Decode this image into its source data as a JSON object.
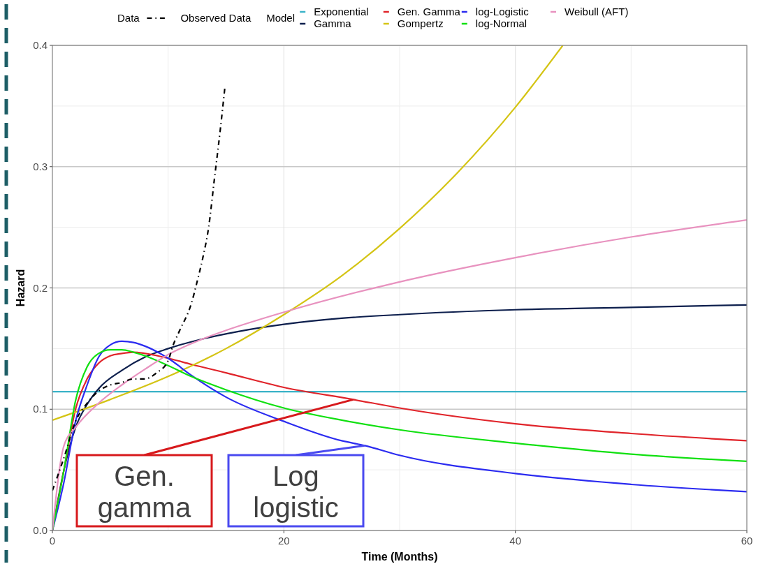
{
  "chart_data": {
    "type": "line",
    "xlabel": "Time (Months)",
    "ylabel": "Hazard",
    "legend": "top",
    "legend_title": "Model",
    "grid": true,
    "xlim": [
      0,
      60
    ],
    "ylim": [
      0,
      0.4
    ],
    "xticks": [
      0,
      20,
      40,
      60
    ],
    "yticks": [
      {
        "value": 0,
        "label": "0.0"
      },
      {
        "value": 0.1,
        "label": "0.1"
      },
      {
        "value": 0.2,
        "label": "0.2"
      },
      {
        "value": 0.3,
        "label": "0.3"
      },
      {
        "value": 0.4,
        "label": "0.4"
      }
    ],
    "annotations": [
      "Data",
      {
        "text": "Gen.\ngamma",
        "x": 26,
        "y": 0.108
      },
      {
        "text": "Log\nlogistic",
        "x": 27,
        "y": 0.07
      }
    ],
    "series": [
      {
        "name": "Observed Data",
        "color": "#000000",
        "line_style": "dashed",
        "x": [
          0,
          1,
          2,
          3,
          4,
          5,
          6,
          7,
          8,
          9,
          10,
          10.4,
          11,
          12,
          12.5,
          13,
          13.5,
          14,
          14.5,
          14.9
        ],
        "values": [
          0.033,
          0.06,
          0.09,
          0.105,
          0.115,
          0.12,
          0.122,
          0.125,
          0.125,
          0.13,
          0.14,
          0.152,
          0.165,
          0.187,
          0.205,
          0.225,
          0.25,
          0.29,
          0.33,
          0.365
        ]
      },
      {
        "name": "Exponential",
        "color": "#3bb3c8",
        "x": [
          0,
          60
        ],
        "values": [
          0.1145,
          0.1145
        ]
      },
      {
        "name": "Gamma",
        "color": "#0d1f4d",
        "x": [
          0,
          1,
          2,
          3,
          4,
          6,
          8,
          10,
          13,
          16,
          20,
          25,
          30,
          40,
          50,
          60
        ],
        "values": [
          0,
          0.05,
          0.085,
          0.104,
          0.117,
          0.132,
          0.143,
          0.15,
          0.158,
          0.164,
          0.17,
          0.175,
          0.178,
          0.182,
          0.184,
          0.186
        ]
      },
      {
        "name": "Gen. Gamma",
        "color": "#e0242a",
        "x": [
          0,
          1,
          2,
          3,
          4,
          5,
          6,
          7,
          8,
          10,
          12,
          15,
          20,
          26,
          30,
          40,
          50,
          60
        ],
        "values": [
          0,
          0.05,
          0.1,
          0.125,
          0.138,
          0.144,
          0.146,
          0.147,
          0.146,
          0.142,
          0.137,
          0.13,
          0.118,
          0.108,
          0.101,
          0.088,
          0.08,
          0.074
        ]
      },
      {
        "name": "Gompertz",
        "color": "#d4c414",
        "x": [
          0,
          5,
          10,
          15,
          20,
          25,
          30,
          35,
          40,
          44.1
        ],
        "values": [
          0.091,
          0.108,
          0.127,
          0.15,
          0.178,
          0.21,
          0.249,
          0.295,
          0.349,
          0.4
        ]
      },
      {
        "name": "log-Logistic",
        "color": "#2b2bf0",
        "x": [
          0,
          1,
          2,
          3,
          4,
          5,
          6,
          7,
          8,
          10,
          12,
          15,
          20,
          25,
          27,
          30,
          40,
          50,
          60
        ],
        "values": [
          0,
          0.04,
          0.09,
          0.12,
          0.143,
          0.153,
          0.156,
          0.155,
          0.152,
          0.142,
          0.128,
          0.11,
          0.09,
          0.074,
          0.07,
          0.062,
          0.047,
          0.038,
          0.032
        ]
      },
      {
        "name": "log-Normal",
        "color": "#10e010",
        "x": [
          0,
          1,
          2,
          3,
          4,
          5,
          6,
          7,
          8,
          10,
          12,
          15,
          20,
          25,
          30,
          40,
          50,
          60
        ],
        "values": [
          0,
          0.05,
          0.107,
          0.135,
          0.146,
          0.149,
          0.149,
          0.147,
          0.144,
          0.136,
          0.127,
          0.116,
          0.101,
          0.091,
          0.083,
          0.072,
          0.063,
          0.057
        ]
      },
      {
        "name": "Weibull (AFT)",
        "color": "#e892bf",
        "x": [
          0,
          1,
          2,
          4,
          6,
          8,
          10,
          13,
          15,
          20,
          30,
          40,
          50,
          60
        ],
        "values": [
          0,
          0.07,
          0.085,
          0.105,
          0.12,
          0.133,
          0.145,
          0.158,
          0.165,
          0.18,
          0.205,
          0.225,
          0.242,
          0.256
        ]
      }
    ]
  }
}
